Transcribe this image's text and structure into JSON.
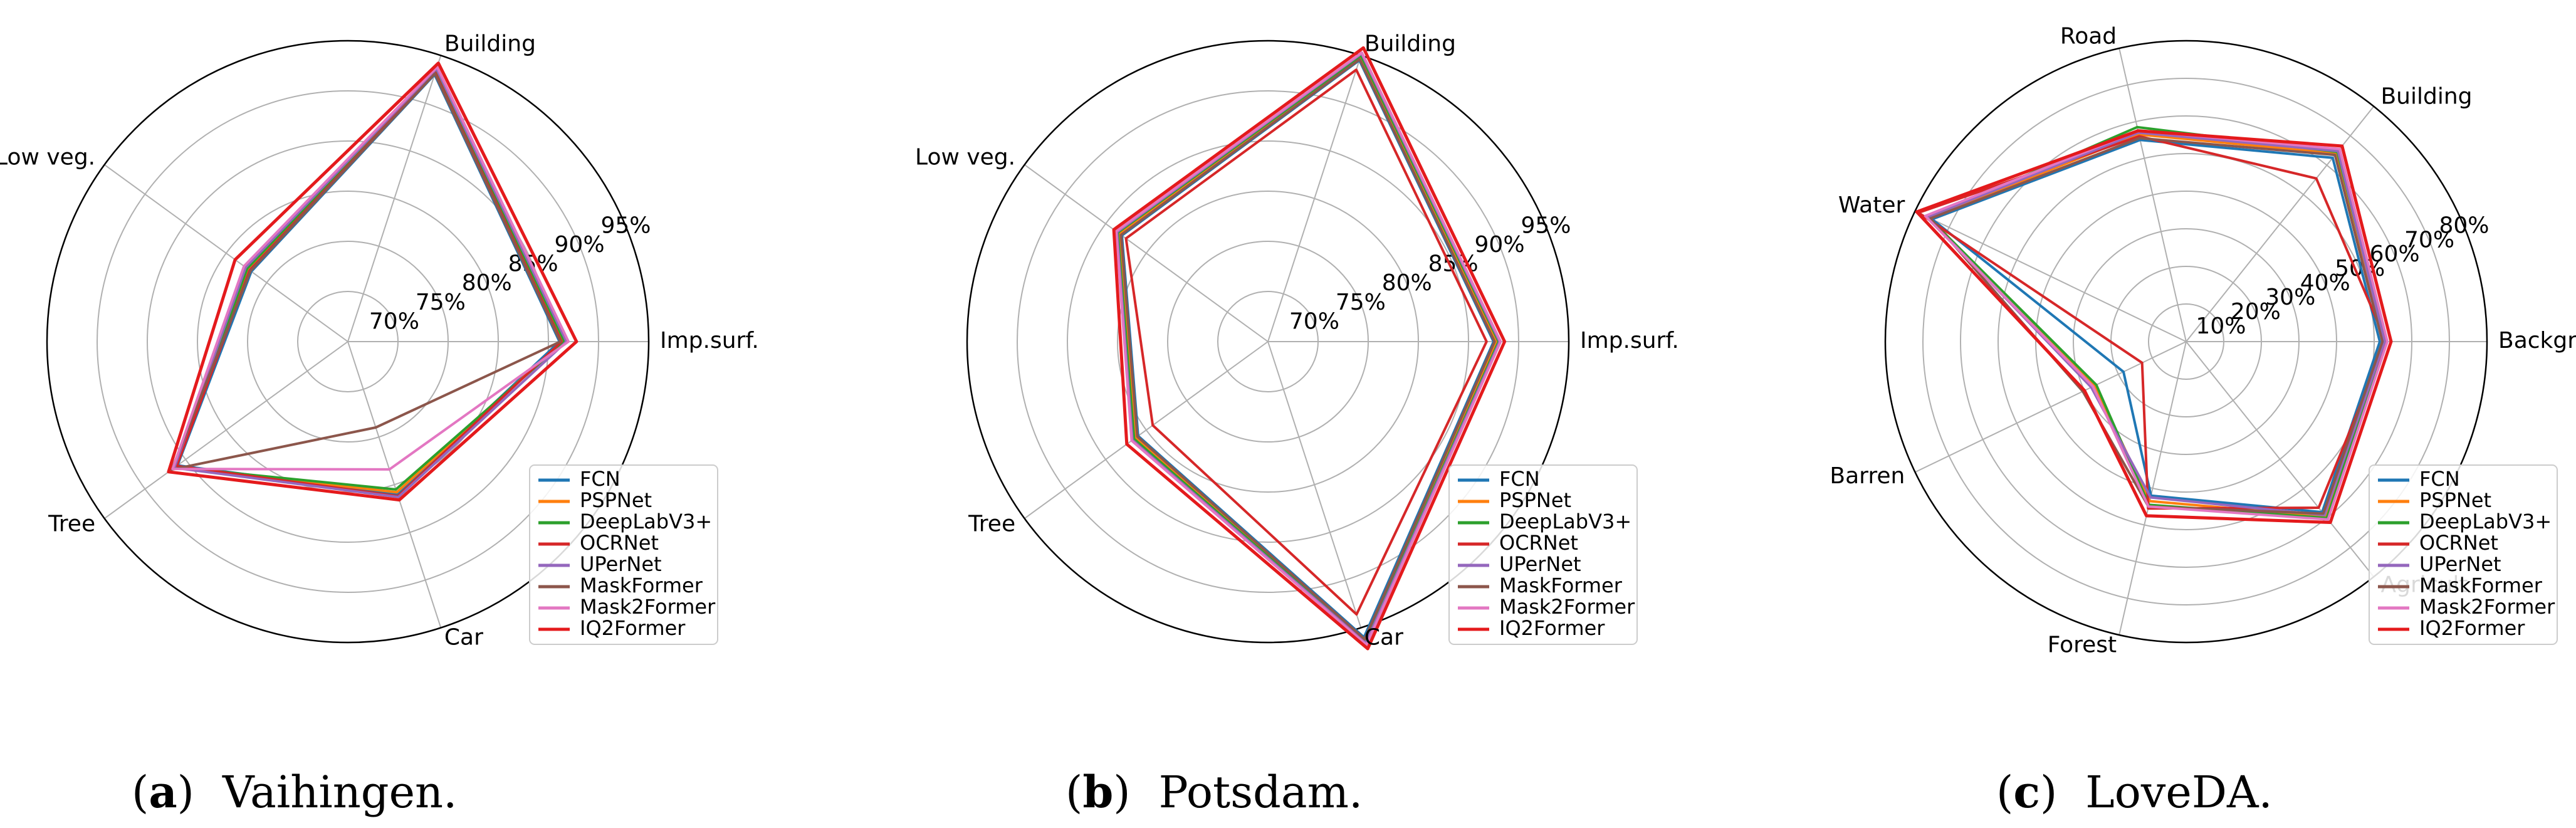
{
  "colors": {
    "FCN": "#1f77b4",
    "PSPNet": "#ff7f0e",
    "DeepLabV3+": "#2ca02c",
    "OCRNet": "#d62728",
    "UPerNet": "#9467bd",
    "MaskFormer": "#8c564b",
    "Mask2Former": "#e377c2",
    "IQ2Former": "#e41a1c"
  },
  "chart_data": [
    {
      "type": "radar",
      "caption_letter": "a",
      "caption_text": "Vaihingen.",
      "categories": [
        "Imp.surf.",
        "Building",
        "Low veg.",
        "Tree",
        "Car"
      ],
      "rlim": [
        65,
        95
      ],
      "rticks": [
        70,
        75,
        80,
        85,
        90,
        95
      ],
      "rtick_labels": [
        "70%",
        "75%",
        "80%",
        "85%",
        "90%",
        "95%"
      ],
      "grid": true,
      "legend_position": "lower-right",
      "series": [
        {
          "name": "FCN",
          "values": [
            86.1,
            93.0,
            76.9,
            86.0,
            81.0
          ]
        },
        {
          "name": "PSPNet",
          "values": [
            86.4,
            93.3,
            77.2,
            86.2,
            80.8
          ]
        },
        {
          "name": "DeepLabV3+",
          "values": [
            86.6,
            93.5,
            77.4,
            86.3,
            80.5
          ]
        },
        {
          "name": "OCRNet",
          "values": [
            86.3,
            93.2,
            77.1,
            86.1,
            81.2
          ]
        },
        {
          "name": "UPerNet",
          "values": [
            86.8,
            93.6,
            77.6,
            86.4,
            81.3
          ]
        },
        {
          "name": "MaskFormer",
          "values": [
            86.2,
            93.1,
            77.0,
            86.7,
            74.0
          ]
        },
        {
          "name": "Mask2Former",
          "values": [
            87.0,
            93.8,
            77.8,
            86.6,
            78.4
          ]
        },
        {
          "name": "IQ2Former",
          "values": [
            87.8,
            94.2,
            78.9,
            87.1,
            81.6
          ]
        }
      ]
    },
    {
      "type": "radar",
      "caption_letter": "b",
      "caption_text": "Potsdam.",
      "categories": [
        "Imp.surf.",
        "Building",
        "Low veg.",
        "Tree",
        "Car"
      ],
      "rlim": [
        65,
        95
      ],
      "rticks": [
        70,
        75,
        80,
        85,
        90,
        95
      ],
      "rtick_labels": [
        "70%",
        "75%",
        "80%",
        "85%",
        "90%",
        "95%"
      ],
      "grid": true,
      "legend_position": "lower-right",
      "series": [
        {
          "name": "FCN",
          "values": [
            87.5,
            94.5,
            83.0,
            81.0,
            96.0
          ]
        },
        {
          "name": "PSPNet",
          "values": [
            87.8,
            94.8,
            83.3,
            81.3,
            96.3
          ]
        },
        {
          "name": "DeepLabV3+",
          "values": [
            88.0,
            95.0,
            83.5,
            81.5,
            96.5
          ]
        },
        {
          "name": "OCRNet",
          "values": [
            86.8,
            93.5,
            82.5,
            79.2,
            93.6
          ]
        },
        {
          "name": "UPerNet",
          "values": [
            88.1,
            95.2,
            83.6,
            81.7,
            96.6
          ]
        },
        {
          "name": "MaskFormer",
          "values": [
            87.6,
            94.6,
            83.1,
            81.1,
            96.2
          ]
        },
        {
          "name": "Mask2Former",
          "values": [
            88.2,
            95.3,
            83.7,
            81.8,
            96.8
          ]
        },
        {
          "name": "IQ2Former",
          "values": [
            88.6,
            95.8,
            84.0,
            82.4,
            97.2
          ]
        }
      ]
    },
    {
      "type": "radar",
      "caption_letter": "c",
      "caption_text": "LoveDA.",
      "categories": [
        "Background",
        "Building",
        "Road",
        "Water",
        "Barren",
        "Forest",
        "Agriculture"
      ],
      "visible_category_labels": [
        "Background",
        "Building",
        "Road",
        "Water",
        "Barren",
        "Forest",
        "Agricult"
      ],
      "rlim": [
        0,
        80
      ],
      "rticks": [
        10,
        20,
        30,
        40,
        50,
        60,
        70,
        80
      ],
      "rtick_labels": [
        "10%",
        "20%",
        "30%",
        "40%",
        "50%",
        "60%",
        "70%",
        "80%"
      ],
      "grid": true,
      "legend_position": "lower-right",
      "series": [
        {
          "name": "FCN",
          "values": [
            51.5,
            62.5,
            55.0,
            75.0,
            18.5,
            42.0,
            58.0
          ]
        },
        {
          "name": "PSPNet",
          "values": [
            52.5,
            64.0,
            56.5,
            75.8,
            27.0,
            43.5,
            59.5
          ]
        },
        {
          "name": "DeepLabV3+",
          "values": [
            53.0,
            64.5,
            58.5,
            76.0,
            26.5,
            44.5,
            60.0
          ]
        },
        {
          "name": "OCRNet",
          "values": [
            53.2,
            55.5,
            56.0,
            79.0,
            13.0,
            45.5,
            56.5
          ]
        },
        {
          "name": "UPerNet",
          "values": [
            52.8,
            64.8,
            57.0,
            76.3,
            28.0,
            42.5,
            59.0
          ]
        },
        {
          "name": "MaskFormer",
          "values": [
            52.2,
            63.5,
            55.5,
            75.5,
            30.5,
            45.0,
            58.5
          ]
        },
        {
          "name": "Mask2Former",
          "values": [
            53.5,
            65.5,
            57.5,
            77.0,
            27.5,
            45.0,
            60.5
          ]
        },
        {
          "name": "IQ2Former",
          "values": [
            54.5,
            66.5,
            57.5,
            79.5,
            30.0,
            47.5,
            61.5
          ]
        }
      ]
    }
  ]
}
